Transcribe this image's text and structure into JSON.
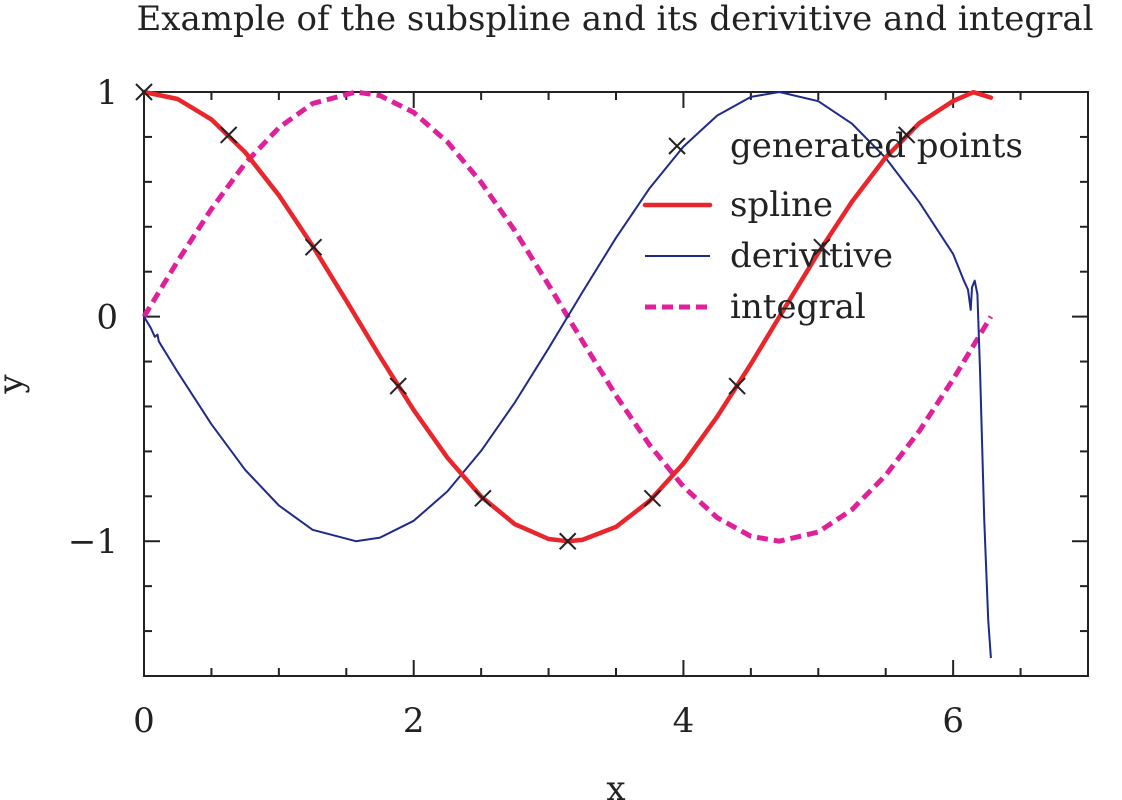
{
  "chart_data": {
    "type": "line",
    "title": "Example of the subspline and its derivitive and integral",
    "xlabel": "x",
    "ylabel": "y",
    "xlim": [
      0,
      7
    ],
    "ylim": [
      -1.6,
      1.0
    ],
    "x_ticks": [
      0,
      2,
      4,
      6
    ],
    "x_tick_labels": [
      "0",
      "2",
      "4",
      "6"
    ],
    "x_minor_step": 0.5,
    "y_ticks": [
      1,
      0,
      -1
    ],
    "y_tick_labels": [
      "1",
      "0",
      "−1"
    ],
    "y_minor_step": 0.2,
    "grid": false,
    "legend_position": "top-right",
    "series": [
      {
        "name": "generated points",
        "style": "markers",
        "marker": "x",
        "color": "#222222",
        "x": [
          0,
          0.628,
          1.257,
          1.885,
          2.513,
          3.142,
          3.77,
          4.398,
          5.027,
          5.655
        ],
        "y": [
          1,
          0.809,
          0.309,
          -0.309,
          -0.809,
          -1,
          -0.809,
          -0.309,
          0.309,
          0.809
        ]
      },
      {
        "name": "spline",
        "style": "solid",
        "color": "#e8262c",
        "x": [
          0,
          0.25,
          0.5,
          0.75,
          1.0,
          1.25,
          1.5,
          1.75,
          2.0,
          2.25,
          2.5,
          2.75,
          3.0,
          3.142,
          3.25,
          3.5,
          3.75,
          4.0,
          4.25,
          4.5,
          4.75,
          5.0,
          5.25,
          5.5,
          5.75,
          6.0,
          6.15,
          6.28
        ],
        "y": [
          1,
          0.969,
          0.878,
          0.732,
          0.54,
          0.315,
          0.071,
          -0.178,
          -0.416,
          -0.628,
          -0.801,
          -0.924,
          -0.99,
          -1,
          -0.994,
          -0.936,
          -0.82,
          -0.654,
          -0.446,
          -0.211,
          0.038,
          0.284,
          0.512,
          0.709,
          0.862,
          0.96,
          0.999,
          0.975
        ]
      },
      {
        "name": "derivitive",
        "style": "solid",
        "color": "#1f2a8a",
        "x": [
          0,
          0.05,
          0.08,
          0.1,
          0.11,
          0.13,
          0.25,
          0.5,
          0.75,
          1.0,
          1.25,
          1.571,
          1.75,
          2.0,
          2.25,
          2.5,
          2.75,
          3.0,
          3.142,
          3.25,
          3.5,
          3.75,
          4.0,
          4.25,
          4.5,
          4.712,
          5.0,
          5.25,
          5.5,
          5.75,
          6.0,
          6.08,
          6.11,
          6.13,
          6.14,
          6.16,
          6.18,
          6.2,
          6.23,
          6.26,
          6.28
        ],
        "y": [
          0,
          -0.05,
          -0.09,
          -0.08,
          -0.11,
          -0.13,
          -0.247,
          -0.479,
          -0.682,
          -0.841,
          -0.949,
          -1.0,
          -0.984,
          -0.909,
          -0.778,
          -0.598,
          -0.382,
          -0.141,
          0,
          0.108,
          0.351,
          0.572,
          0.757,
          0.895,
          0.978,
          1.0,
          0.959,
          0.859,
          0.706,
          0.509,
          0.279,
          0.16,
          0.12,
          0.03,
          0.13,
          0.16,
          0.1,
          -0.25,
          -0.9,
          -1.35,
          -1.52
        ]
      },
      {
        "name": "integral",
        "style": "dashed",
        "color": "#e0209a",
        "x": [
          0,
          0.25,
          0.5,
          0.75,
          1.0,
          1.25,
          1.571,
          1.75,
          2.0,
          2.25,
          2.5,
          2.75,
          3.0,
          3.25,
          3.5,
          3.75,
          4.0,
          4.25,
          4.5,
          4.712,
          5.0,
          5.25,
          5.5,
          5.75,
          6.0,
          6.28
        ],
        "y": [
          0,
          0.247,
          0.479,
          0.682,
          0.841,
          0.949,
          1.0,
          0.984,
          0.909,
          0.778,
          0.598,
          0.382,
          0.141,
          -0.108,
          -0.351,
          -0.572,
          -0.757,
          -0.895,
          -0.978,
          -1.0,
          -0.959,
          -0.859,
          -0.706,
          -0.509,
          -0.279,
          0.0
        ]
      }
    ]
  }
}
